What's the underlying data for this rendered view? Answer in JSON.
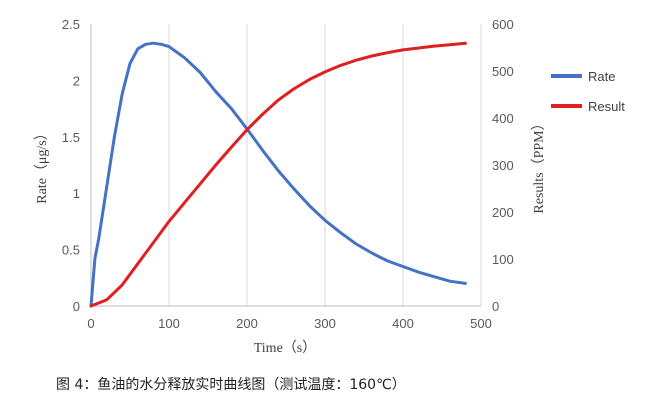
{
  "chart_data": {
    "type": "line",
    "x_axis": {
      "label": "Time（s）",
      "range": [
        0,
        500
      ],
      "ticks": [
        0,
        100,
        200,
        300,
        400,
        500
      ]
    },
    "y_axis_left": {
      "label": "Rate（μg/s）",
      "range": [
        0,
        2.5
      ],
      "ticks": [
        0,
        0.5,
        1,
        1.5,
        2,
        2.5
      ]
    },
    "y_axis_right": {
      "label": "Results（PPM）",
      "range": [
        0,
        600
      ],
      "ticks": [
        0,
        100,
        200,
        300,
        400,
        500,
        600
      ]
    },
    "grid": "vertical",
    "legend_position": "right",
    "series": [
      {
        "name": "Rate",
        "axis": "left",
        "color": "#4472C4",
        "x": [
          0,
          5,
          10,
          20,
          30,
          40,
          50,
          60,
          70,
          80,
          90,
          100,
          120,
          140,
          160,
          180,
          200,
          220,
          240,
          260,
          280,
          300,
          320,
          340,
          360,
          380,
          400,
          420,
          440,
          460,
          480
        ],
        "y": [
          0.0,
          0.42,
          0.6,
          1.05,
          1.5,
          1.88,
          2.15,
          2.28,
          2.32,
          2.33,
          2.32,
          2.3,
          2.2,
          2.07,
          1.9,
          1.75,
          1.57,
          1.38,
          1.2,
          1.04,
          0.89,
          0.76,
          0.65,
          0.55,
          0.47,
          0.4,
          0.35,
          0.3,
          0.26,
          0.22,
          0.2
        ]
      },
      {
        "name": "Result",
        "axis": "right",
        "color": "#E02020",
        "x": [
          0,
          20,
          40,
          60,
          80,
          100,
          120,
          140,
          160,
          180,
          200,
          220,
          240,
          260,
          280,
          300,
          320,
          340,
          360,
          380,
          400,
          420,
          440,
          460,
          480
        ],
        "y": [
          0,
          13,
          45,
          90,
          135,
          180,
          220,
          260,
          300,
          338,
          375,
          408,
          438,
          462,
          482,
          498,
          512,
          523,
          532,
          539,
          545,
          549,
          553,
          556,
          559
        ]
      }
    ]
  },
  "caption": "图 4：鱼油的水分释放实时曲线图（测试温度：160℃）"
}
